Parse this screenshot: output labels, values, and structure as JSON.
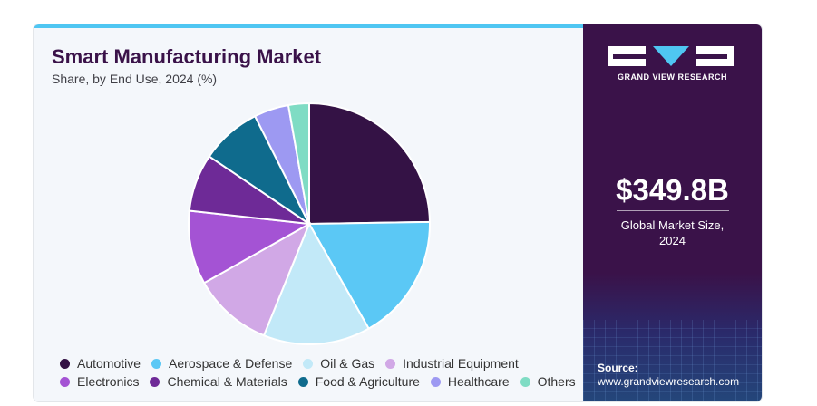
{
  "header": {
    "title": "Smart Manufacturing Market",
    "subtitle": "Share, by End Use, 2024 (%)"
  },
  "sidebar": {
    "brand": "GRAND VIEW RESEARCH",
    "logo_icon": "gvr-logo-icon",
    "market_value": "$349.8B",
    "market_label_line1": "Global Market Size,",
    "market_label_line2": "2024",
    "source_label": "Source:",
    "source_url": "www.grandviewresearch.com"
  },
  "colors": {
    "brand_purple": "#3a1249",
    "accent_blue": "#4fc6f2"
  },
  "chart_data": {
    "type": "pie",
    "title": "Smart Manufacturing Market",
    "subtitle": "Share, by End Use, 2024 (%)",
    "legend_position": "bottom",
    "slices": [
      {
        "label": "Automotive",
        "value": 25.0,
        "color": "#341245"
      },
      {
        "label": "Aerospace & Defense",
        "value": 17.2,
        "color": "#5bc8f5"
      },
      {
        "label": "Oil & Gas",
        "value": 14.5,
        "color": "#c2e9f8"
      },
      {
        "label": "Industrial Equipment",
        "value": 10.8,
        "color": "#d1a8e6"
      },
      {
        "label": "Electronics",
        "value": 10.0,
        "color": "#a453d4"
      },
      {
        "label": "Chemical & Materials",
        "value": 7.8,
        "color": "#6e2a97"
      },
      {
        "label": "Food & Agriculture",
        "value": 8.2,
        "color": "#0f6b8d"
      },
      {
        "label": "Healthcare",
        "value": 4.7,
        "color": "#9d99f2"
      },
      {
        "label": "Others",
        "value": 2.8,
        "color": "#7fdcc4"
      }
    ]
  }
}
